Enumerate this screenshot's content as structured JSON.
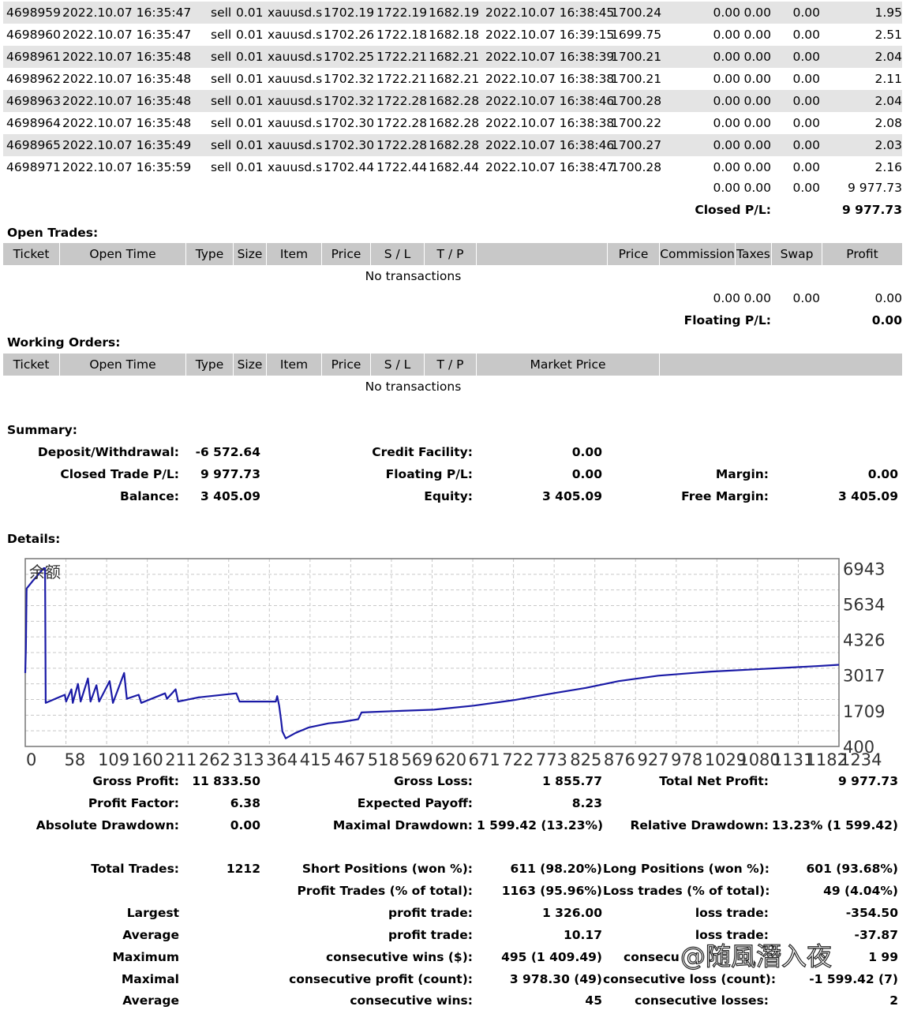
{
  "trades": [
    {
      "ticket": "4698959",
      "open_time": "2022.10.07 16:35:47",
      "type": "sell",
      "size": "0.01",
      "item": "xauusd.s",
      "price": "1702.19",
      "sl": "1722.19",
      "tp": "1682.19",
      "close_time": "2022.10.07 16:38:45",
      "close_price": "1700.24",
      "commission": "0.00",
      "taxes": "0.00",
      "swap": "0.00",
      "profit": "1.95"
    },
    {
      "ticket": "4698960",
      "open_time": "2022.10.07 16:35:47",
      "type": "sell",
      "size": "0.01",
      "item": "xauusd.s",
      "price": "1702.26",
      "sl": "1722.18",
      "tp": "1682.18",
      "close_time": "2022.10.07 16:39:15",
      "close_price": "1699.75",
      "commission": "0.00",
      "taxes": "0.00",
      "swap": "0.00",
      "profit": "2.51"
    },
    {
      "ticket": "4698961",
      "open_time": "2022.10.07 16:35:48",
      "type": "sell",
      "size": "0.01",
      "item": "xauusd.s",
      "price": "1702.25",
      "sl": "1722.21",
      "tp": "1682.21",
      "close_time": "2022.10.07 16:38:39",
      "close_price": "1700.21",
      "commission": "0.00",
      "taxes": "0.00",
      "swap": "0.00",
      "profit": "2.04"
    },
    {
      "ticket": "4698962",
      "open_time": "2022.10.07 16:35:48",
      "type": "sell",
      "size": "0.01",
      "item": "xauusd.s",
      "price": "1702.32",
      "sl": "1722.21",
      "tp": "1682.21",
      "close_time": "2022.10.07 16:38:38",
      "close_price": "1700.21",
      "commission": "0.00",
      "taxes": "0.00",
      "swap": "0.00",
      "profit": "2.11"
    },
    {
      "ticket": "4698963",
      "open_time": "2022.10.07 16:35:48",
      "type": "sell",
      "size": "0.01",
      "item": "xauusd.s",
      "price": "1702.32",
      "sl": "1722.28",
      "tp": "1682.28",
      "close_time": "2022.10.07 16:38:46",
      "close_price": "1700.28",
      "commission": "0.00",
      "taxes": "0.00",
      "swap": "0.00",
      "profit": "2.04"
    },
    {
      "ticket": "4698964",
      "open_time": "2022.10.07 16:35:48",
      "type": "sell",
      "size": "0.01",
      "item": "xauusd.s",
      "price": "1702.30",
      "sl": "1722.28",
      "tp": "1682.28",
      "close_time": "2022.10.07 16:38:38",
      "close_price": "1700.22",
      "commission": "0.00",
      "taxes": "0.00",
      "swap": "0.00",
      "profit": "2.08"
    },
    {
      "ticket": "4698965",
      "open_time": "2022.10.07 16:35:49",
      "type": "sell",
      "size": "0.01",
      "item": "xauusd.s",
      "price": "1702.30",
      "sl": "1722.28",
      "tp": "1682.28",
      "close_time": "2022.10.07 16:38:46",
      "close_price": "1700.27",
      "commission": "0.00",
      "taxes": "0.00",
      "swap": "0.00",
      "profit": "2.03"
    },
    {
      "ticket": "4698971",
      "open_time": "2022.10.07 16:35:59",
      "type": "sell",
      "size": "0.01",
      "item": "xauusd.s",
      "price": "1702.44",
      "sl": "1722.44",
      "tp": "1682.44",
      "close_time": "2022.10.07 16:38:47",
      "close_price": "1700.28",
      "commission": "0.00",
      "taxes": "0.00",
      "swap": "0.00",
      "profit": "2.16"
    }
  ],
  "closed_totals": {
    "commission": "0.00",
    "taxes": "0.00",
    "swap": "0.00",
    "profit": "9 977.73"
  },
  "closed_pl": {
    "label": "Closed P/L:",
    "value": "9 977.73"
  },
  "open_trades": {
    "title": "Open Trades:",
    "headers": {
      "ticket": "Ticket",
      "open_time": "Open Time",
      "type": "Type",
      "size": "Size",
      "item": "Item",
      "price": "Price",
      "sl": "S / L",
      "tp": "T / P",
      "price2": "Price",
      "commission": "Commission",
      "taxes": "Taxes",
      "swap": "Swap",
      "profit": "Profit"
    },
    "empty": "No transactions",
    "totals": {
      "commission": "0.00",
      "taxes": "0.00",
      "swap": "0.00",
      "profit": "0.00"
    },
    "floating_label": "Floating P/L:",
    "floating_value": "0.00"
  },
  "working_orders": {
    "title": "Working Orders:",
    "headers": {
      "ticket": "Ticket",
      "open_time": "Open Time",
      "type": "Type",
      "size": "Size",
      "item": "Item",
      "price": "Price",
      "sl": "S / L",
      "tp": "T / P",
      "market_price": "Market Price"
    },
    "empty": "No transactions"
  },
  "summary": {
    "title": "Summary:",
    "deposit_label": "Deposit/Withdrawal:",
    "deposit_value": "-6 572.64",
    "credit_label": "Credit Facility:",
    "credit_value": "0.00",
    "closed_label": "Closed Trade P/L:",
    "closed_value": "9 977.73",
    "floating_label": "Floating P/L:",
    "floating_value": "0.00",
    "margin_label": "Margin:",
    "margin_value": "0.00",
    "balance_label": "Balance:",
    "balance_value": "3 405.09",
    "equity_label": "Equity:",
    "equity_value": "3 405.09",
    "free_margin_label": "Free Margin:",
    "free_margin_value": "3 405.09"
  },
  "details_title": "Details:",
  "chart_data": {
    "type": "line",
    "title": "余额",
    "yticks": [
      "6943",
      "5634",
      "4326",
      "3017",
      "1709",
      "400"
    ],
    "xticks": [
      "0",
      "58",
      "109",
      "160",
      "211",
      "262",
      "313",
      "364",
      "415",
      "467",
      "518",
      "569",
      "620",
      "671",
      "722",
      "773",
      "825",
      "876",
      "927",
      "978",
      "1029",
      "1080",
      "1131",
      "1182",
      "1234"
    ],
    "ylim": [
      400,
      7300
    ],
    "xlim": [
      0,
      1234
    ],
    "grid": true,
    "series": [
      {
        "color": "#1a1aa6",
        "points": [
          [
            0,
            3100
          ],
          [
            1,
            4000
          ],
          [
            2,
            6200
          ],
          [
            12,
            6500
          ],
          [
            28,
            6950
          ],
          [
            30,
            6950
          ],
          [
            31,
            2000
          ],
          [
            60,
            2300
          ],
          [
            62,
            2050
          ],
          [
            70,
            2500
          ],
          [
            72,
            2000
          ],
          [
            80,
            2700
          ],
          [
            84,
            2050
          ],
          [
            95,
            2900
          ],
          [
            99,
            2050
          ],
          [
            108,
            2650
          ],
          [
            112,
            2050
          ],
          [
            128,
            2800
          ],
          [
            133,
            2000
          ],
          [
            150,
            3100
          ],
          [
            154,
            2150
          ],
          [
            172,
            2300
          ],
          [
            176,
            2000
          ],
          [
            212,
            2350
          ],
          [
            215,
            2150
          ],
          [
            228,
            2500
          ],
          [
            232,
            2050
          ],
          [
            262,
            2200
          ],
          [
            320,
            2350
          ],
          [
            325,
            2050
          ],
          [
            380,
            2050
          ],
          [
            382,
            2250
          ],
          [
            385,
            1900
          ],
          [
            388,
            1350
          ],
          [
            390,
            950
          ],
          [
            395,
            700
          ],
          [
            410,
            900
          ],
          [
            430,
            1100
          ],
          [
            460,
            1250
          ],
          [
            480,
            1300
          ],
          [
            505,
            1400
          ],
          [
            510,
            1650
          ],
          [
            560,
            1700
          ],
          [
            620,
            1750
          ],
          [
            680,
            1900
          ],
          [
            740,
            2100
          ],
          [
            800,
            2350
          ],
          [
            850,
            2550
          ],
          [
            900,
            2800
          ],
          [
            960,
            3000
          ],
          [
            1040,
            3150
          ],
          [
            1120,
            3250
          ],
          [
            1200,
            3350
          ],
          [
            1234,
            3400
          ]
        ]
      }
    ]
  },
  "stats": {
    "gross_profit_label": "Gross Profit:",
    "gross_profit_value": "11 833.50",
    "gross_loss_label": "Gross Loss:",
    "gross_loss_value": "1 855.77",
    "total_net_label": "Total Net Profit:",
    "total_net_value": "9 977.73",
    "profit_factor_label": "Profit Factor:",
    "profit_factor_value": "6.38",
    "expected_payoff_label": "Expected Payoff:",
    "expected_payoff_value": "8.23",
    "abs_dd_label": "Absolute Drawdown:",
    "abs_dd_value": "0.00",
    "max_dd_label": "Maximal Drawdown:",
    "max_dd_value": "1 599.42 (13.23%)",
    "rel_dd_label": "Relative Drawdown:",
    "rel_dd_value": "13.23% (1 599.42)",
    "total_trades_label": "Total Trades:",
    "total_trades_value": "1212",
    "short_label": "Short Positions (won %):",
    "short_value": "611 (98.20%)",
    "long_label": "Long Positions (won %):",
    "long_value": "601 (93.68%)",
    "profit_trades_label": "Profit Trades (% of total):",
    "profit_trades_value": "1163 (95.96%)",
    "loss_trades_label": "Loss trades (% of total):",
    "loss_trades_value": "49 (4.04%)",
    "largest_label": "Largest",
    "largest_profit_label": "profit trade:",
    "largest_profit_value": "1 326.00",
    "largest_loss_label": "loss trade:",
    "largest_loss_value": "-354.50",
    "average_label": "Average",
    "average_profit_label": "profit trade:",
    "average_profit_value": "10.17",
    "average_loss_label": "loss trade:",
    "average_loss_value": "-37.87",
    "maximum_label": "Maximum",
    "max_cons_wins_label": "consecutive wins ($):",
    "max_cons_wins_value": "495 (1 409.49)",
    "max_cons_losses_label": "consecu",
    "max_cons_losses_value": "1 99",
    "maximal_label": "Maximal",
    "maximal_cons_profit_label": "consecutive profit (count):",
    "maximal_cons_profit_value": "3 978.30 (49)",
    "maximal_cons_loss_label": "consecutive loss (count):",
    "maximal_cons_loss_value": "-1 599.42 (7)",
    "avg2_label": "Average",
    "avg_cons_wins_label": "consecutive wins:",
    "avg_cons_wins_value": "45",
    "avg_cons_losses_label": "consecutive losses:",
    "avg_cons_losses_value": "2"
  },
  "watermark": "@随風潛入夜"
}
